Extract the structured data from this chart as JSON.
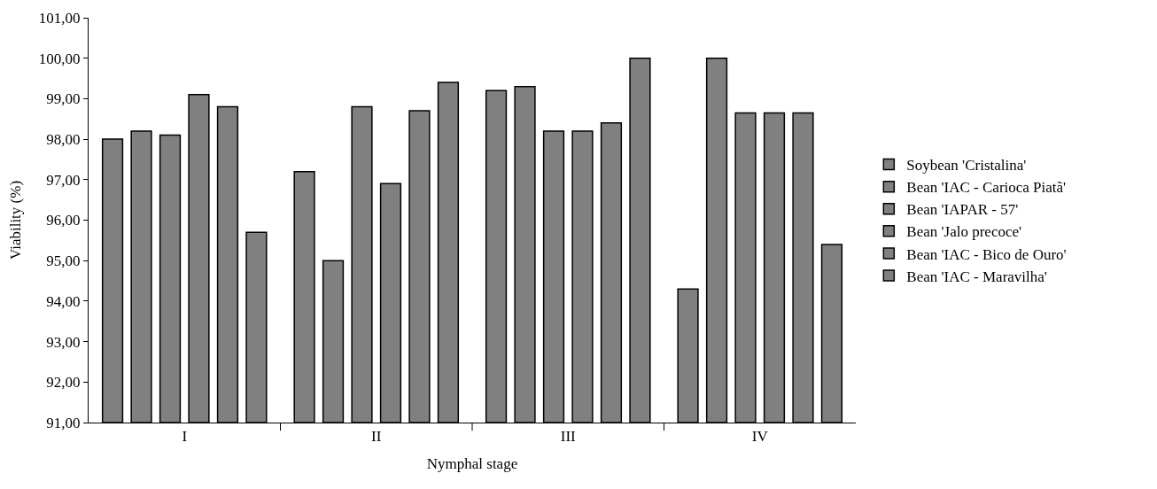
{
  "chart_data": {
    "type": "bar",
    "xlabel": "Nymphal stage",
    "ylabel": "Viability (%)",
    "categories": [
      "I",
      "II",
      "III",
      "IV"
    ],
    "ylim": [
      91,
      101
    ],
    "yticks": [
      {
        "value": 91,
        "label": "91,00"
      },
      {
        "value": 92,
        "label": "92,00"
      },
      {
        "value": 93,
        "label": "93,00"
      },
      {
        "value": 94,
        "label": "94,00"
      },
      {
        "value": 95,
        "label": "95,00"
      },
      {
        "value": 96,
        "label": "96,00"
      },
      {
        "value": 97,
        "label": "97,00"
      },
      {
        "value": 98,
        "label": "98,00"
      },
      {
        "value": 99,
        "label": "99,00"
      },
      {
        "value": 100,
        "label": "100,00"
      },
      {
        "value": 101,
        "label": "101,00"
      }
    ],
    "legend": "right",
    "series": [
      {
        "name": "Soybean 'Cristalina'",
        "color": "#808080",
        "values": [
          98.0,
          97.2,
          99.2,
          94.3
        ]
      },
      {
        "name": "Bean 'IAC - Carioca Piatã'",
        "color": "#808080",
        "values": [
          98.2,
          95.0,
          99.3,
          100.0
        ]
      },
      {
        "name": "Bean 'IAPAR - 57'",
        "color": "#808080",
        "values": [
          98.1,
          98.8,
          98.2,
          98.65
        ]
      },
      {
        "name": "Bean 'Jalo precoce'",
        "color": "#808080",
        "values": [
          99.1,
          96.9,
          98.2,
          98.65
        ]
      },
      {
        "name": "Bean 'IAC - Bico de Ouro'",
        "color": "#808080",
        "values": [
          98.8,
          98.7,
          98.4,
          98.65
        ]
      },
      {
        "name": "Bean 'IAC - Maravilha'",
        "color": "#808080",
        "values": [
          95.7,
          99.4,
          100.0,
          95.4
        ]
      }
    ]
  }
}
